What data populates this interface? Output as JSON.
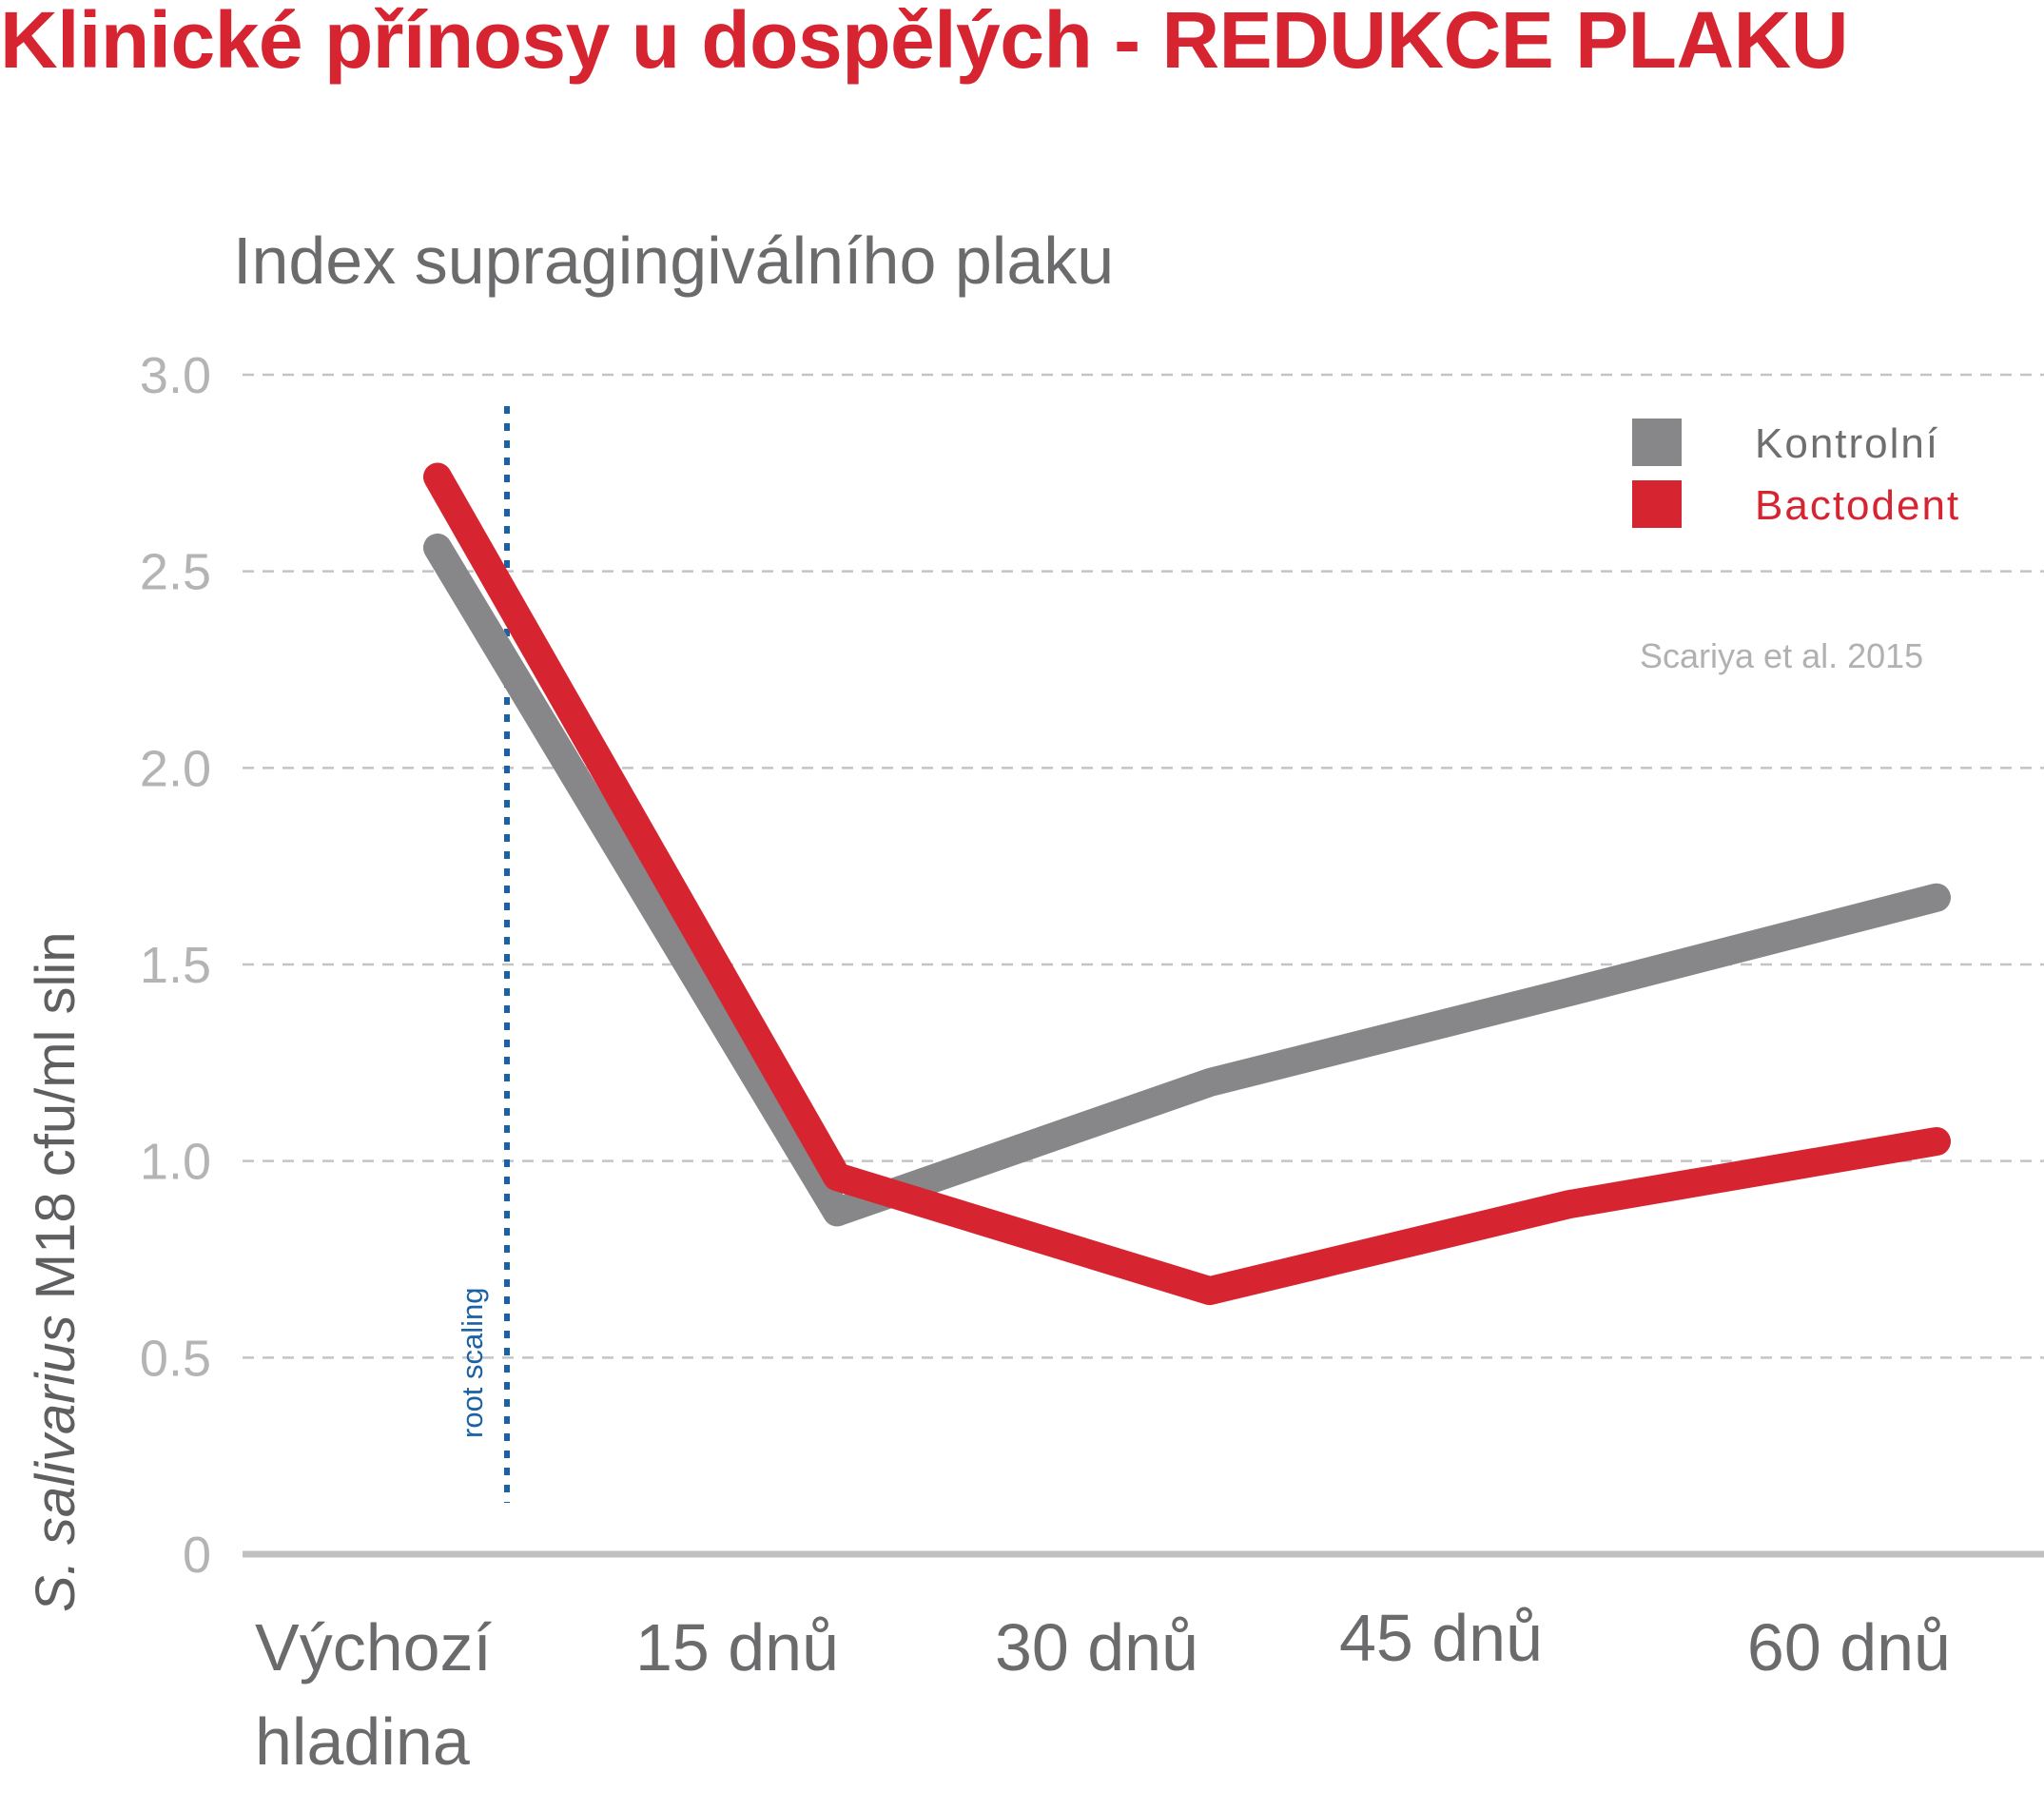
{
  "page_title": "Klinické přínosy u dospělých - REDUKCE PLAKU",
  "colors": {
    "title": "#d62430",
    "control": "#87878a",
    "bactodent": "#d62430",
    "marker": "#1a62a3",
    "grid": "#c4c4c6",
    "axis": "#c0c0c2"
  },
  "chart_data": {
    "type": "line",
    "title": "Index supragingiválního plaku",
    "ylabel_italic": "S. salivarius",
    "ylabel_rest": " M18 cfu/ml slin",
    "categories": [
      [
        "Výchozí",
        "hladina"
      ],
      [
        "15 dnů"
      ],
      [
        "30 dnů"
      ],
      [
        "45 dnů"
      ],
      [
        "60 dnů"
      ]
    ],
    "yticks": [
      "0",
      "0.5",
      "1.0",
      "1.5",
      "2.0",
      "2.5",
      "3.0"
    ],
    "ylim": [
      0,
      3
    ],
    "grid": true,
    "legend_position": "top-right",
    "series": [
      {
        "name": "Kontrolní",
        "color_key": "control",
        "values": [
          2.56,
          0.87,
          1.2,
          1.43,
          1.67
        ]
      },
      {
        "name": "Bactodent",
        "color_key": "bactodent",
        "values": [
          2.74,
          0.96,
          0.67,
          0.89,
          1.05
        ]
      }
    ],
    "annotations": {
      "marker_label": "root scaling",
      "source": "Scariya et al. 2015"
    }
  }
}
